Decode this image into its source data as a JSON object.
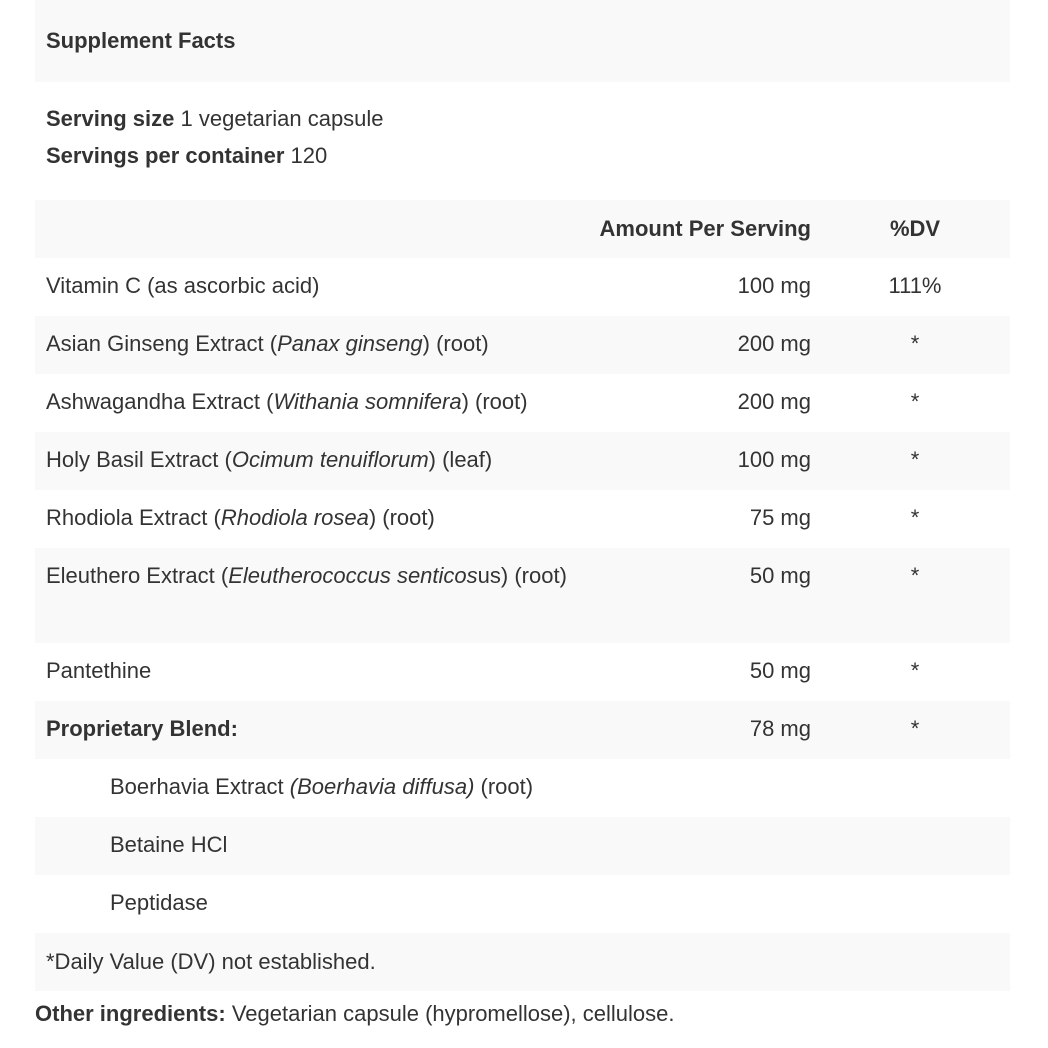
{
  "title": "Supplement Facts",
  "serving": {
    "size_label": "Serving size",
    "size_value": "1 vegetarian capsule",
    "per_label": "Servings per container",
    "per_value": "120"
  },
  "header": {
    "amount": "Amount Per Serving",
    "dv": "%DV"
  },
  "rows": [
    {
      "pre": "Vitamin C (as ascorbic acid)",
      "it": "",
      "post": "",
      "amount": "100 mg",
      "dv": "111%"
    },
    {
      "pre": "Asian Ginseng Extract (",
      "it": "Panax ginseng",
      "post": ") (root)",
      "amount": "200 mg",
      "dv": "*"
    },
    {
      "pre": "Ashwagandha Extract (",
      "it": "Withania somnifera",
      "post": ") (root)",
      "amount": "200 mg",
      "dv": "*"
    },
    {
      "pre": "Holy Basil Extract (",
      "it": "Ocimum tenuiflorum",
      "post": ") (leaf)",
      "amount": "100 mg",
      "dv": "*"
    },
    {
      "pre": "Rhodiola Extract (",
      "it": "Rhodiola rosea",
      "post": ") (root)",
      "amount": "75 mg",
      "dv": "*"
    },
    {
      "pre": "Eleuthero Extract (",
      "it": "Eleutherococcus senticos",
      "post": "us) (root)",
      "amount": "50 mg",
      "dv": "*"
    },
    {
      "pre": "Pantethine",
      "it": "",
      "post": "",
      "amount": "50 mg",
      "dv": "*"
    }
  ],
  "blend": {
    "label": "Proprietary Blend:",
    "amount": "78 mg",
    "dv": "*",
    "items": [
      {
        "pre": "Boerhavia Extract ",
        "it": "(Boerhavia diffusa)",
        "post": " (root)"
      },
      {
        "pre": "Betaine HCl",
        "it": "",
        "post": ""
      },
      {
        "pre": "Peptidase",
        "it": "",
        "post": ""
      }
    ]
  },
  "note": "*Daily Value (DV) not established.",
  "other": {
    "label": "Other ingredients:",
    "value": "Vegetarian capsule (hypromellose), cellulose."
  }
}
